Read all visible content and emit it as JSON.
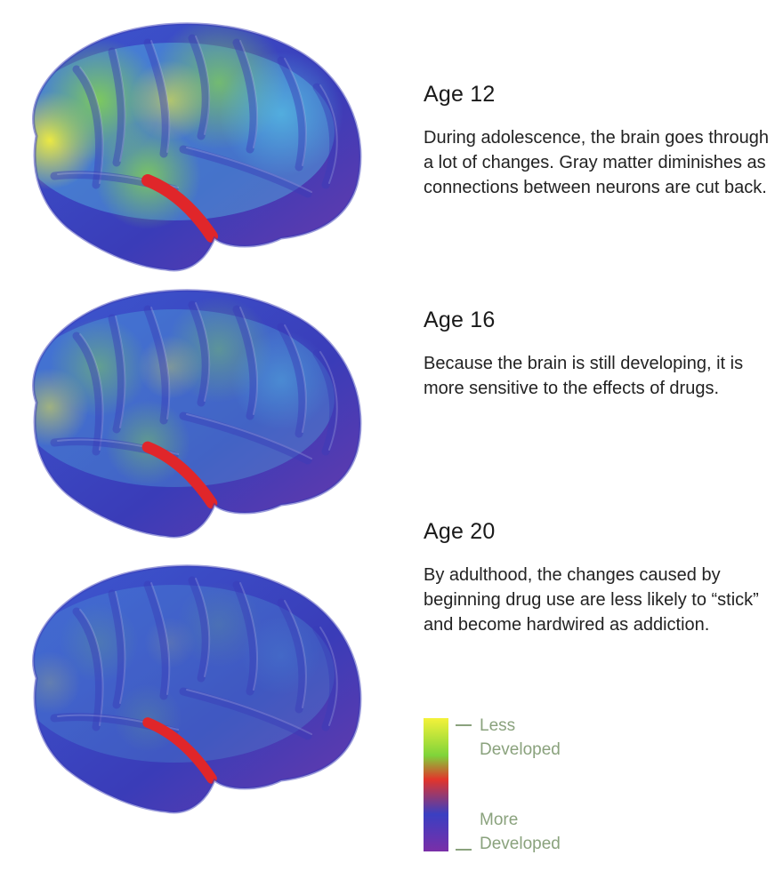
{
  "sections": [
    {
      "age": "Age 12",
      "description": "During adolescence, the brain goes through a lot of changes. Gray matter diminishes as connections between neurons are cut back.",
      "warmth": 1.0
    },
    {
      "age": "Age 16",
      "description": "Because the brain is still developing, it is more sensitive to the effects of drugs.",
      "warmth": 0.55
    },
    {
      "age": "Age 20",
      "description": "By adulthood, the changes caused by beginning drug use are less likely to “stick” and become hardwired as addiction.",
      "warmth": 0.2
    }
  ],
  "legend": {
    "top_label_line1": "Less",
    "top_label_line2": "Developed",
    "bottom_label_line1": "More",
    "bottom_label_line2": "Developed",
    "colors": [
      "#f4f23a",
      "#7fd43a",
      "#e2352b",
      "#3a3fc2",
      "#7a2fa8"
    ]
  },
  "colors": {
    "yellow": "#f3ee3c",
    "green": "#86d64a",
    "cyan": "#58c6e6",
    "blue": "#3c58d0",
    "indigo": "#3a3cb8",
    "purple": "#6a3aaa",
    "red": "#e0262a"
  }
}
